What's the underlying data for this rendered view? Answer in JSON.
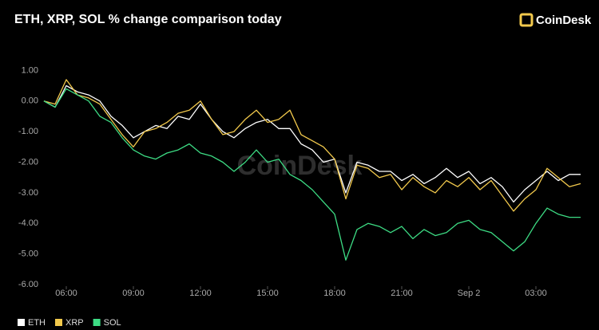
{
  "chart_data": {
    "type": "line",
    "title": "ETH, XRP, SOL % change comparison today",
    "logo": "CoinDesk",
    "watermark": "CoinDesk",
    "x": [
      5,
      5.5,
      6,
      6.5,
      7,
      7.5,
      8,
      8.5,
      9,
      9.5,
      10,
      10.5,
      11,
      11.5,
      12,
      12.5,
      13,
      13.5,
      14,
      14.5,
      15,
      15.5,
      16,
      16.5,
      17,
      17.5,
      18,
      18.5,
      19,
      19.5,
      20,
      20.5,
      21,
      21.5,
      22,
      22.5,
      23,
      23.5,
      24,
      24.5,
      25,
      25.5,
      26,
      26.5,
      27,
      27.5,
      28,
      28.5,
      29
    ],
    "xlim": [
      5,
      29
    ],
    "xticks": [
      {
        "value": 6,
        "label": "06:00"
      },
      {
        "value": 9,
        "label": "09:00"
      },
      {
        "value": 12,
        "label": "12:00"
      },
      {
        "value": 15,
        "label": "15:00"
      },
      {
        "value": 18,
        "label": "18:00"
      },
      {
        "value": 21,
        "label": "21:00"
      },
      {
        "value": 24,
        "label": "Sep 2"
      },
      {
        "value": 27,
        "label": "03:00"
      }
    ],
    "ylim": [
      -6,
      1.4
    ],
    "yticks": [
      {
        "value": 1,
        "label": "1.00"
      },
      {
        "value": 0,
        "label": "0.00"
      },
      {
        "value": -1,
        "label": "-1.00"
      },
      {
        "value": -2,
        "label": "-2.00"
      },
      {
        "value": -3,
        "label": "-3.00"
      },
      {
        "value": -4,
        "label": "-4.00"
      },
      {
        "value": -5,
        "label": "-5.00"
      },
      {
        "value": -6,
        "label": "-6.00"
      }
    ],
    "grid": false,
    "series": [
      {
        "name": "ETH",
        "color": "#ffffff",
        "values": [
          0,
          -0.2,
          0.5,
          0.3,
          0.2,
          0,
          -0.5,
          -0.8,
          -1.2,
          -1,
          -0.8,
          -0.9,
          -0.5,
          -0.6,
          -0.1,
          -0.6,
          -1,
          -1.2,
          -0.9,
          -0.7,
          -0.6,
          -0.9,
          -0.9,
          -1.4,
          -1.6,
          -2,
          -1.9,
          -3,
          -2,
          -2.1,
          -2.3,
          -2.3,
          -2.6,
          -2.4,
          -2.7,
          -2.5,
          -2.2,
          -2.5,
          -2.3,
          -2.7,
          -2.5,
          -2.8,
          -3.3,
          -2.9,
          -2.6,
          -2.3,
          -2.6,
          -2.4,
          -2.4
        ]
      },
      {
        "name": "XRP",
        "color": "#f2c94c",
        "values": [
          0,
          -0.1,
          0.7,
          0.2,
          0.1,
          -0.1,
          -0.6,
          -1.1,
          -1.5,
          -1,
          -0.9,
          -0.7,
          -0.4,
          -0.3,
          0,
          -0.6,
          -1.1,
          -1,
          -0.6,
          -0.3,
          -0.7,
          -0.6,
          -0.3,
          -1.1,
          -1.3,
          -1.5,
          -1.9,
          -3.2,
          -2.1,
          -2.2,
          -2.5,
          -2.4,
          -2.9,
          -2.5,
          -2.8,
          -3,
          -2.6,
          -2.8,
          -2.5,
          -2.9,
          -2.6,
          -3.1,
          -3.6,
          -3.2,
          -2.9,
          -2.2,
          -2.5,
          -2.8,
          -2.7
        ]
      },
      {
        "name": "SOL",
        "color": "#3ddc84",
        "values": [
          0,
          -0.2,
          0.4,
          0.2,
          0,
          -0.5,
          -0.7,
          -1.2,
          -1.6,
          -1.8,
          -1.9,
          -1.7,
          -1.6,
          -1.4,
          -1.7,
          -1.8,
          -2,
          -2.3,
          -2,
          -1.6,
          -2,
          -1.9,
          -2.4,
          -2.6,
          -2.9,
          -3.3,
          -3.7,
          -5.2,
          -4.2,
          -4,
          -4.1,
          -4.3,
          -4.1,
          -4.5,
          -4.2,
          -4.4,
          -4.3,
          -4,
          -3.9,
          -4.2,
          -4.3,
          -4.6,
          -4.9,
          -4.6,
          -4,
          -3.5,
          -3.7,
          -3.8,
          -3.8
        ]
      }
    ]
  }
}
